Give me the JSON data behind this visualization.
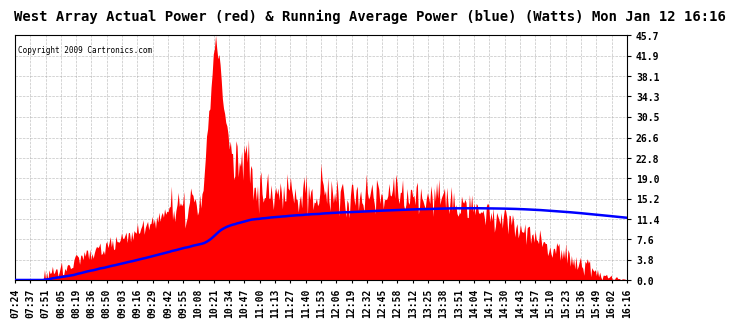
{
  "title": "West Array Actual Power (red) & Running Average Power (blue) (Watts) Mon Jan 12 16:16",
  "copyright": "Copyright 2009 Cartronics.com",
  "yticks": [
    0.0,
    3.8,
    7.6,
    11.4,
    15.2,
    19.0,
    22.8,
    26.6,
    30.5,
    34.3,
    38.1,
    41.9,
    45.7
  ],
  "ylim": [
    0.0,
    45.7
  ],
  "xtick_labels": [
    "07:24",
    "07:37",
    "07:51",
    "08:05",
    "08:19",
    "08:36",
    "08:50",
    "09:03",
    "09:16",
    "09:29",
    "09:42",
    "09:55",
    "10:08",
    "10:21",
    "10:34",
    "10:47",
    "11:00",
    "11:13",
    "11:27",
    "11:40",
    "11:53",
    "12:06",
    "12:19",
    "12:32",
    "12:45",
    "12:58",
    "13:12",
    "13:25",
    "13:38",
    "13:51",
    "14:04",
    "14:17",
    "14:30",
    "14:43",
    "14:57",
    "15:10",
    "15:23",
    "15:36",
    "15:49",
    "16:02",
    "16:16"
  ],
  "bg_color": "#ffffff",
  "plot_bg_color": "#ffffff",
  "grid_color": "#aaaaaa",
  "title_fontsize": 10,
  "tick_fontsize": 7,
  "actual_color": "#ff0000",
  "avg_color": "#0000ff"
}
